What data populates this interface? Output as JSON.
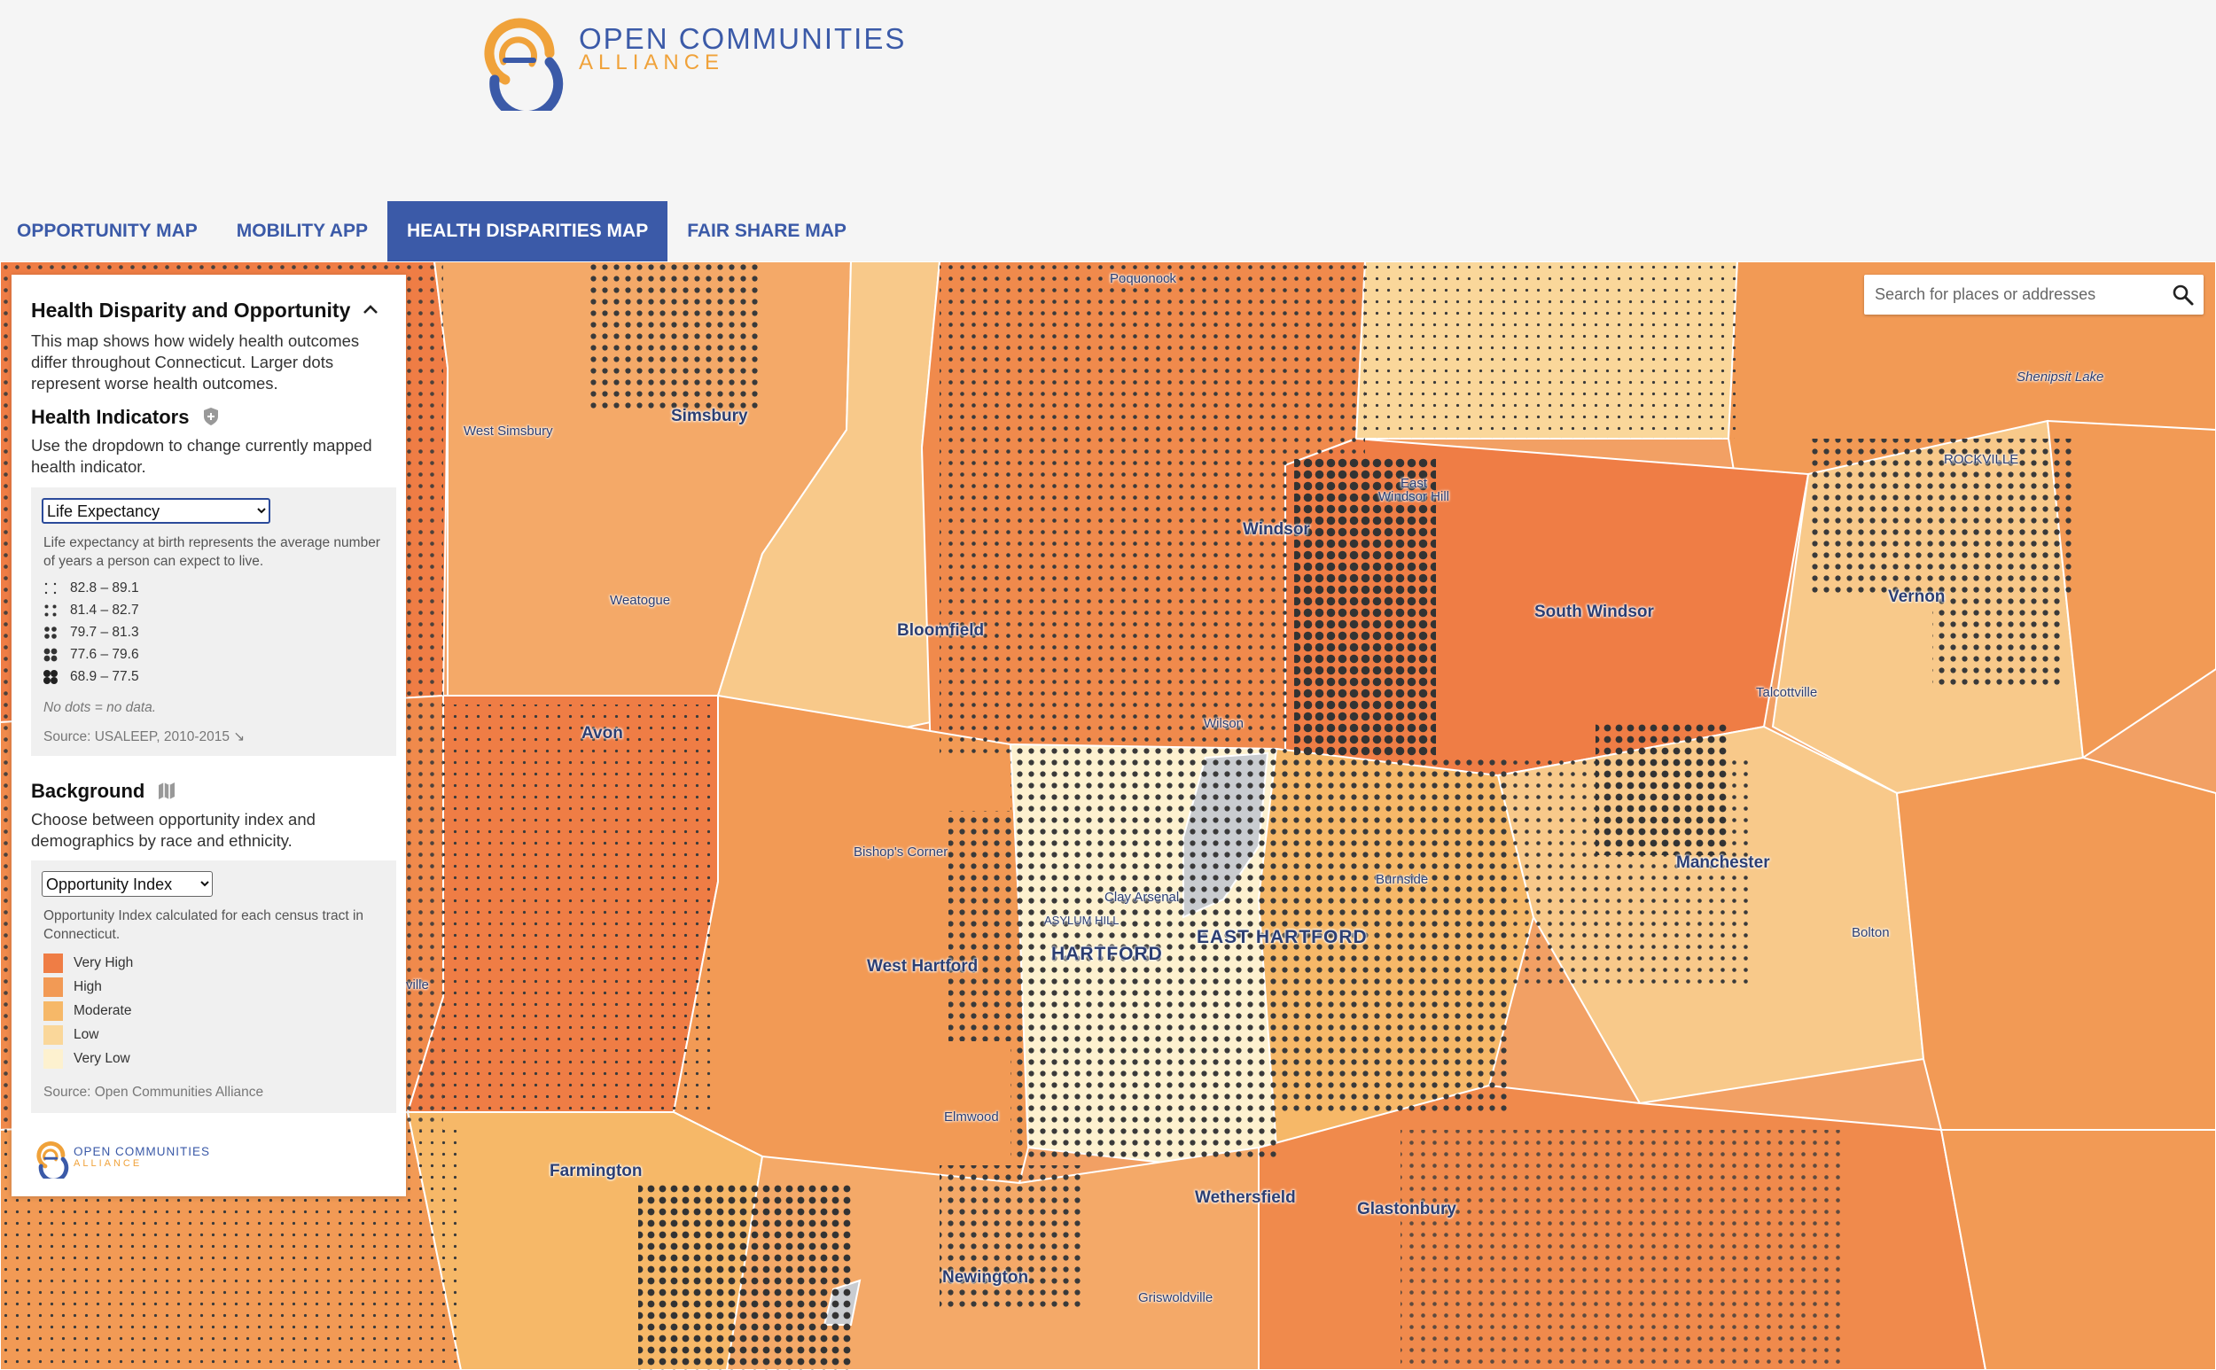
{
  "header": {
    "logo_line1": "OPEN COMMUNITIES",
    "logo_line2": "ALLIANCE"
  },
  "nav": {
    "tabs": [
      {
        "label": "OPPORTUNITY MAP"
      },
      {
        "label": "MOBILITY APP"
      },
      {
        "label": "HEALTH DISPARITIES MAP"
      },
      {
        "label": "FAIR SHARE MAP"
      }
    ],
    "active_index": 2
  },
  "search": {
    "placeholder": "Search for places or addresses"
  },
  "panel": {
    "title": "Health Disparity and Opportunity",
    "intro": "This map shows how widely health outcomes differ throughout Connecticut. Larger dots represent worse health outcomes.",
    "health": {
      "heading": "Health Indicators",
      "description": "Use the dropdown to change currently mapped health indicator.",
      "selected": "Life Expectancy",
      "explain": "Life expectancy at birth represents the average number of years a person can expect to live.",
      "ranges": [
        "82.8 – 89.1",
        "81.4 – 82.7",
        "79.7 – 81.3",
        "77.6 – 79.6",
        "68.9 – 77.5"
      ],
      "no_data": "No dots = no data.",
      "source": "Source: USALEEP, 2010-2015 ↘"
    },
    "background": {
      "heading": "Background",
      "description": "Choose between opportunity index and demographics by race and ethnicity.",
      "selected": "Opportunity Index",
      "explain": "Opportunity Index calculated for each census tract in Connecticut.",
      "classes": [
        {
          "label": "Very High",
          "color": "#ef7d45"
        },
        {
          "label": "High",
          "color": "#f29a55"
        },
        {
          "label": "Moderate",
          "color": "#f6b868"
        },
        {
          "label": "Low",
          "color": "#fad79a"
        },
        {
          "label": "Very Low",
          "color": "#fdf1cf"
        }
      ],
      "source": "Source: Open Communities Alliance"
    },
    "logo_line1": "OPEN COMMUNITIES",
    "logo_line2": "ALLIANCE"
  },
  "map": {
    "places": {
      "poquonock": "Poquonock",
      "west_simsbury": "West Simsbury",
      "simsbury": "Simsbury",
      "east_windsor_hill": "East Windsor Hill",
      "windsor": "Windsor",
      "south_windsor": "South Windsor",
      "rockville": "ROCKVILLE",
      "vernon": "Vernon",
      "shenipsit_lake": "Shenipsit Lake",
      "weatogue": "Weatogue",
      "bloomfield": "Bloomfield",
      "talcottville": "Talcottville",
      "avon": "Avon",
      "wilson": "Wilson",
      "bishops_corner": "Bishop's Corner",
      "manchester": "Manchester",
      "clay_arsenal": "Clay Arsenal",
      "burnside": "Burnside",
      "asylum_hill": "ASYLUM HILL",
      "east_hartford": "EAST HARTFORD",
      "hartford": "HARTFORD",
      "bolton": "Bolton",
      "west_hartford": "West Hartford",
      "ville": "ville",
      "elmwood": "Elmwood",
      "farmington": "Farmington",
      "wethersfield": "Wethersfield",
      "glastonbury": "Glastonbury",
      "newington": "Newington",
      "griswoldville": "Griswoldville"
    }
  }
}
